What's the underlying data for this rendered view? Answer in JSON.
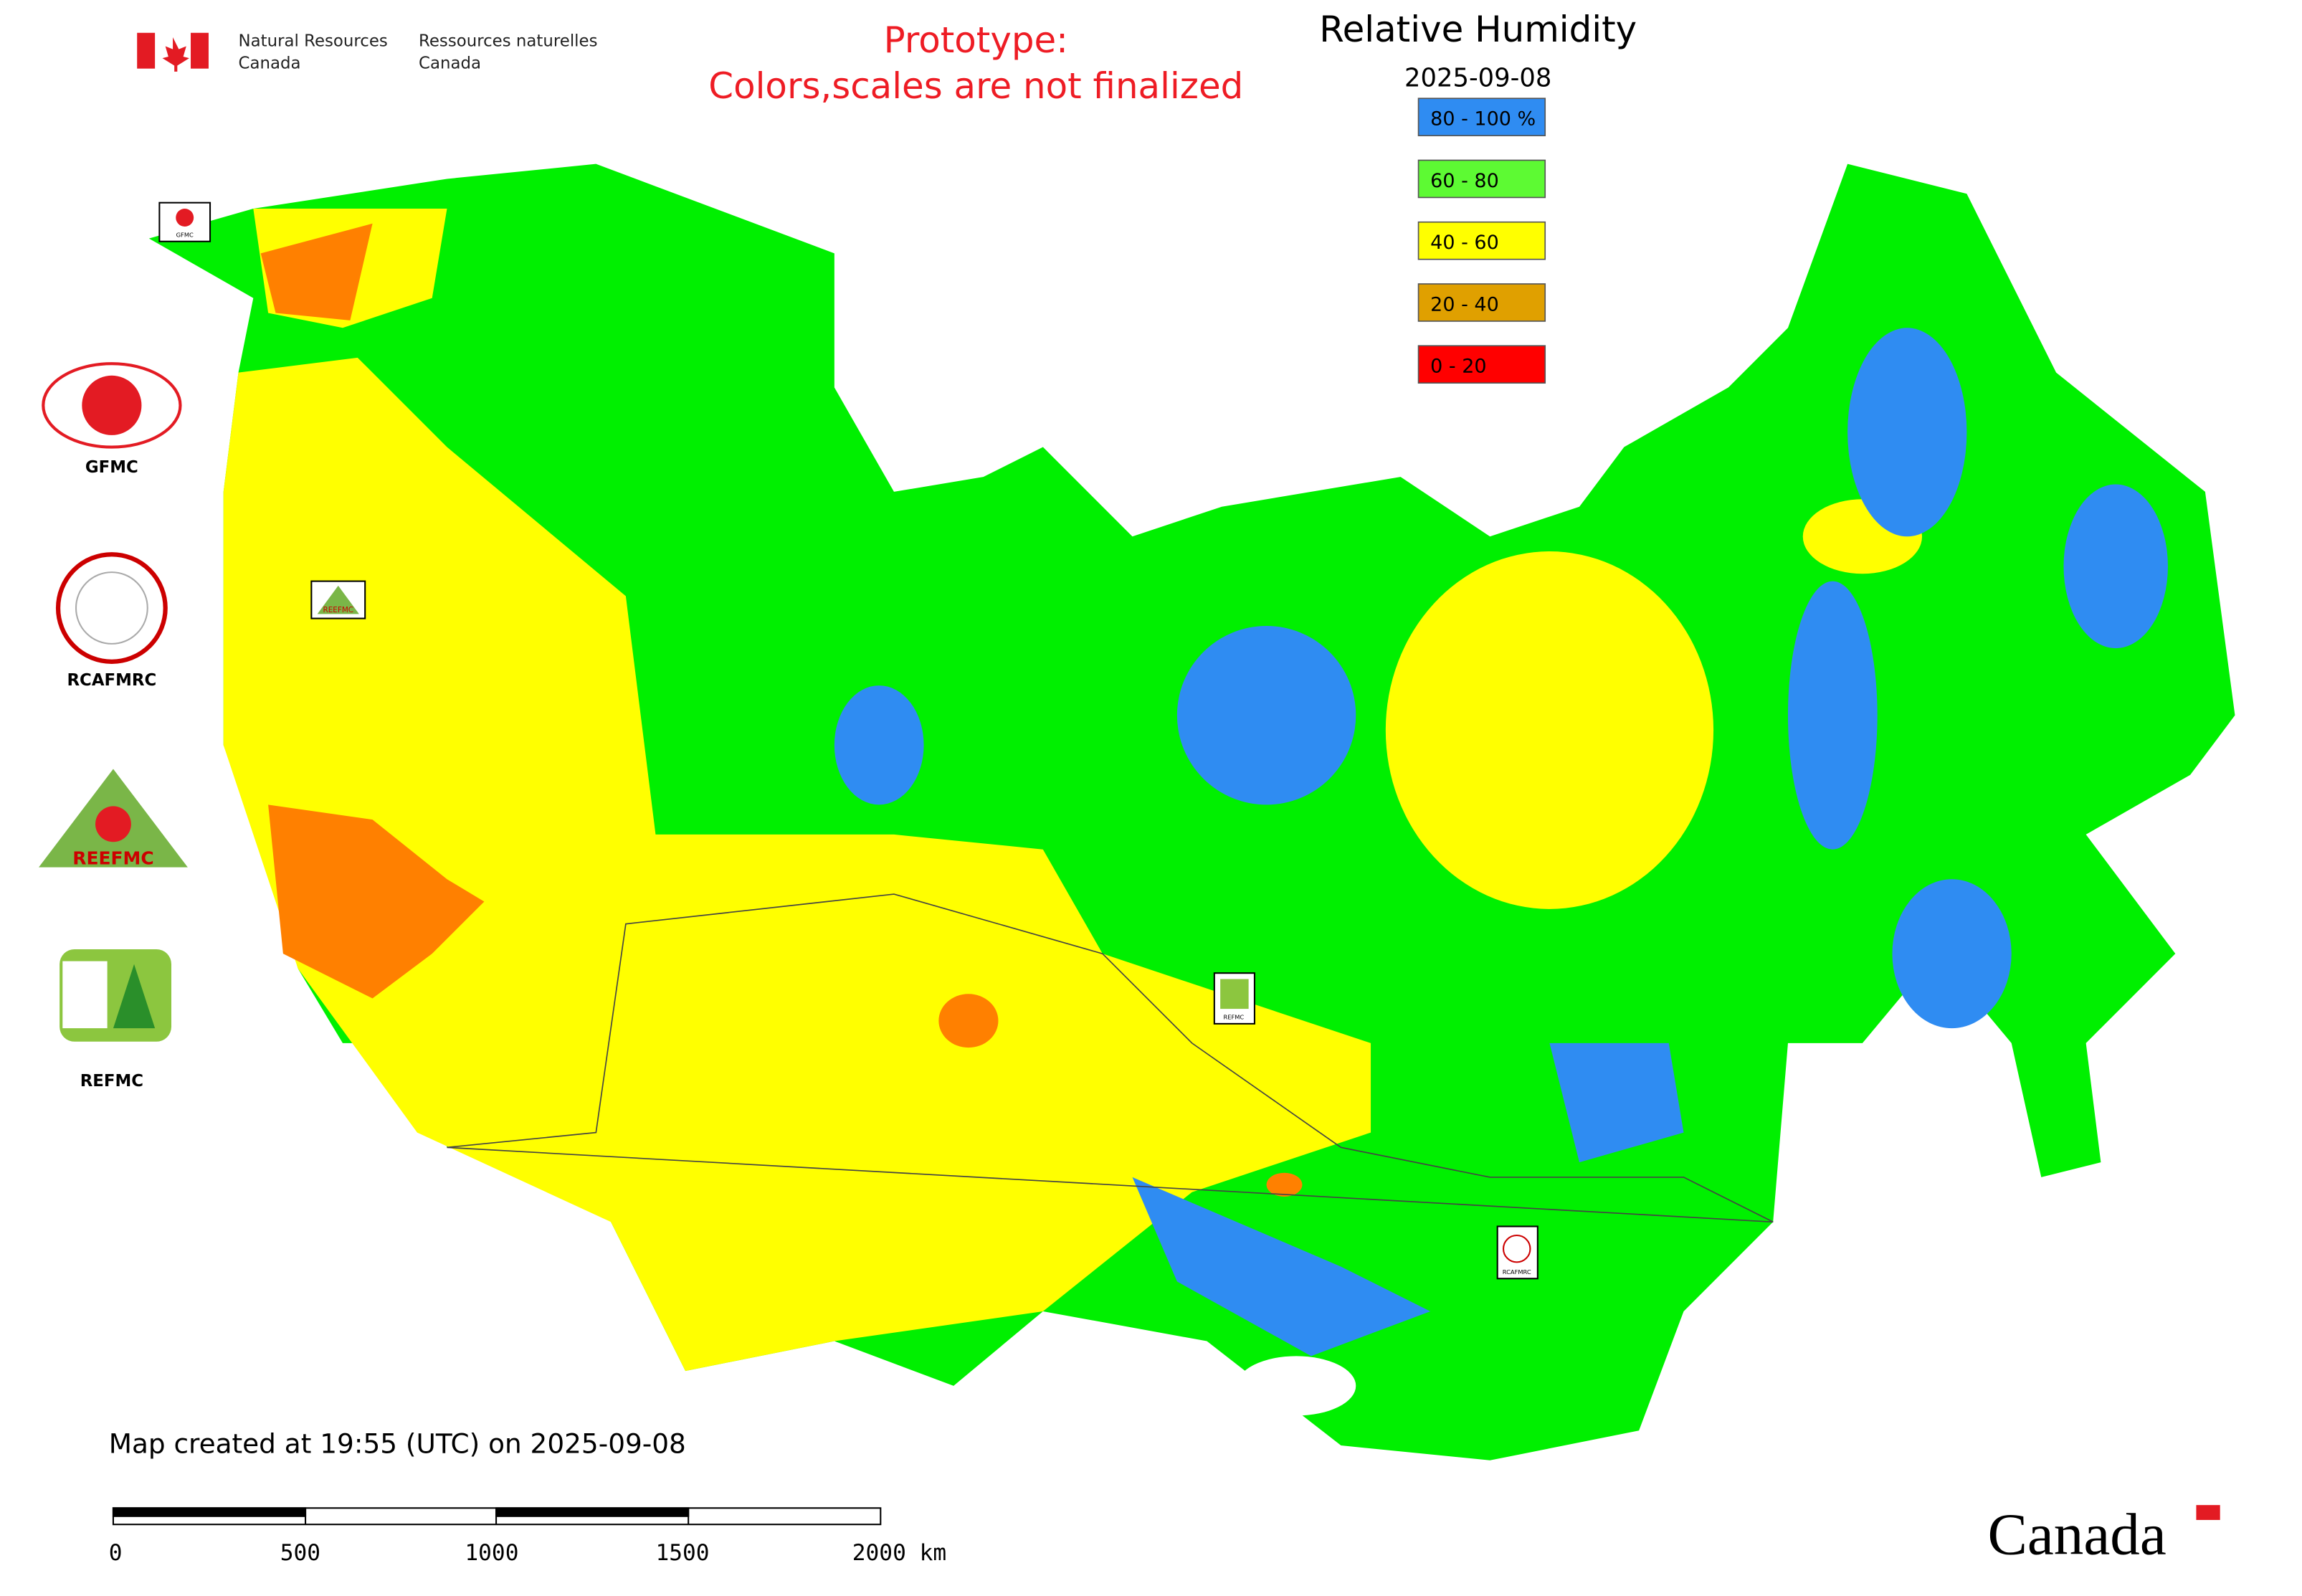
{
  "header": {
    "agency_en": [
      "Natural Resources",
      "Canada"
    ],
    "agency_fr": [
      "Ressources naturelles",
      "Canada"
    ],
    "notice": [
      "Prototype:",
      "Colors,scales are not finalized"
    ]
  },
  "legend": {
    "title": "Relative Humidity",
    "date": "2025-09-08",
    "items": [
      {
        "label": "80 - 100 %",
        "color": "#2f8cf2"
      },
      {
        "label": "60 - 80",
        "color": "#5dfa33"
      },
      {
        "label": "40 - 60",
        "color": "#ffff00"
      },
      {
        "label": "20 - 40",
        "color": "#e0a000"
      },
      {
        "label": "0 - 20",
        "color": "#ff0000"
      }
    ]
  },
  "logos": [
    "GFMC",
    "RCAFMRC",
    "REEFMC",
    "REFMC"
  ],
  "footer": {
    "created": "Map created at 19:55 (UTC) on 2025-09-08",
    "scale_labels": [
      "0",
      "500",
      "1000",
      "1500",
      "2000 km"
    ],
    "wordmark": "Canada"
  }
}
